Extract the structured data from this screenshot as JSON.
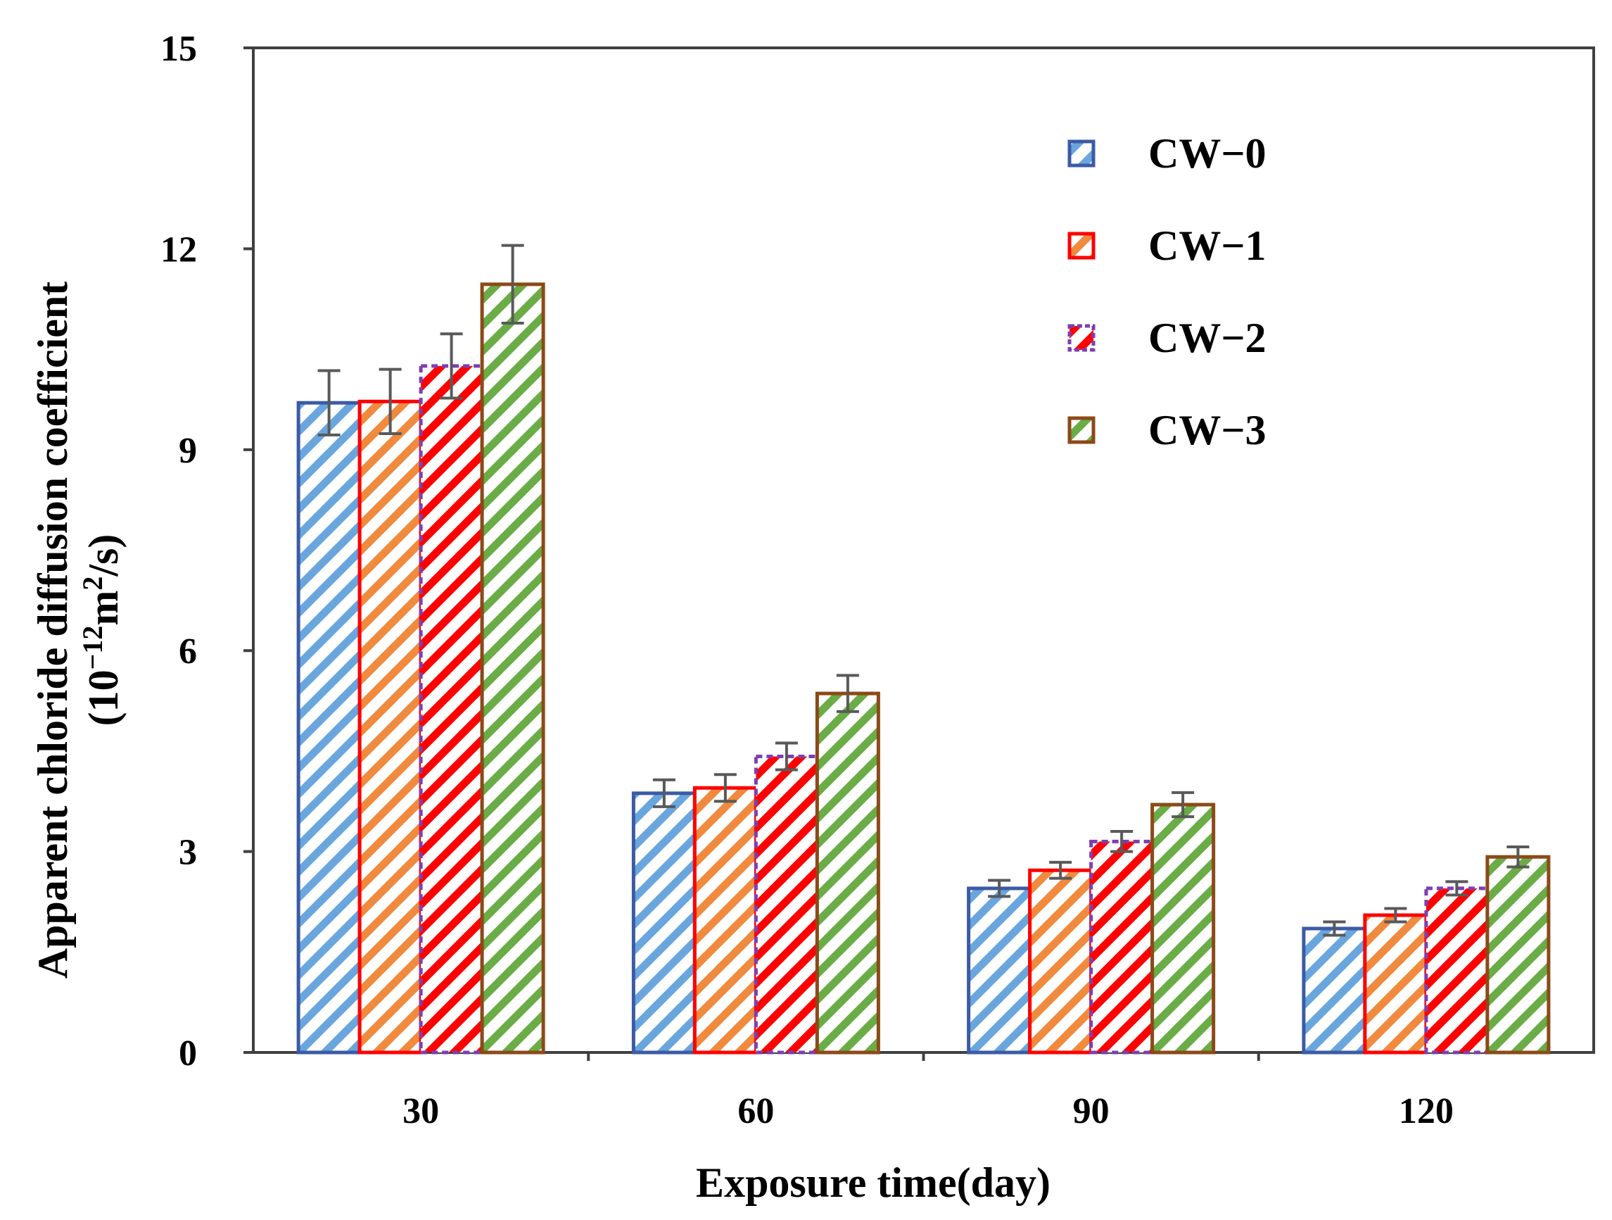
{
  "chart_data": {
    "type": "bar",
    "title": "",
    "xlabel": "Exposure time(day)",
    "ylabel_line1": "Apparent chloride diffusion coefficient",
    "ylabel_prefix": "(10",
    "ylabel_exp": "−12",
    "ylabel_mid": "m",
    "ylabel_exp2": "2",
    "ylabel_suffix": "/s)",
    "categories": [
      "30",
      "60",
      "90",
      "120"
    ],
    "ylim": [
      0,
      15
    ],
    "yticks": [
      0,
      3,
      6,
      9,
      12,
      15
    ],
    "ytick_labels": [
      "0",
      "3",
      "6",
      "9",
      "12",
      "15"
    ],
    "grid": false,
    "legend_position": "top-right",
    "series": [
      {
        "name": "CW−0",
        "values": [
          9.7,
          3.87,
          2.45,
          1.85
        ],
        "errors": [
          0.48,
          0.2,
          0.12,
          0.1
        ],
        "edge": "#3b5ba5",
        "hatch": "#6aa6de",
        "dash": false
      },
      {
        "name": "CW−1",
        "values": [
          9.72,
          3.95,
          2.72,
          2.05
        ],
        "errors": [
          0.48,
          0.2,
          0.12,
          0.1
        ],
        "edge": "#ff0000",
        "hatch": "#f08a3e",
        "dash": false
      },
      {
        "name": "CW−2",
        "values": [
          10.25,
          4.42,
          3.15,
          2.45
        ],
        "errors": [
          0.48,
          0.2,
          0.15,
          0.1
        ],
        "edge": "#7d3fb0",
        "hatch": "#ff0000",
        "dash": true
      },
      {
        "name": "CW−3",
        "values": [
          11.47,
          5.36,
          3.7,
          2.92
        ],
        "errors": [
          0.58,
          0.27,
          0.18,
          0.15
        ],
        "edge": "#8b4a17",
        "hatch": "#6aac46",
        "dash": false
      }
    ],
    "error_bar_color": "#595959"
  }
}
